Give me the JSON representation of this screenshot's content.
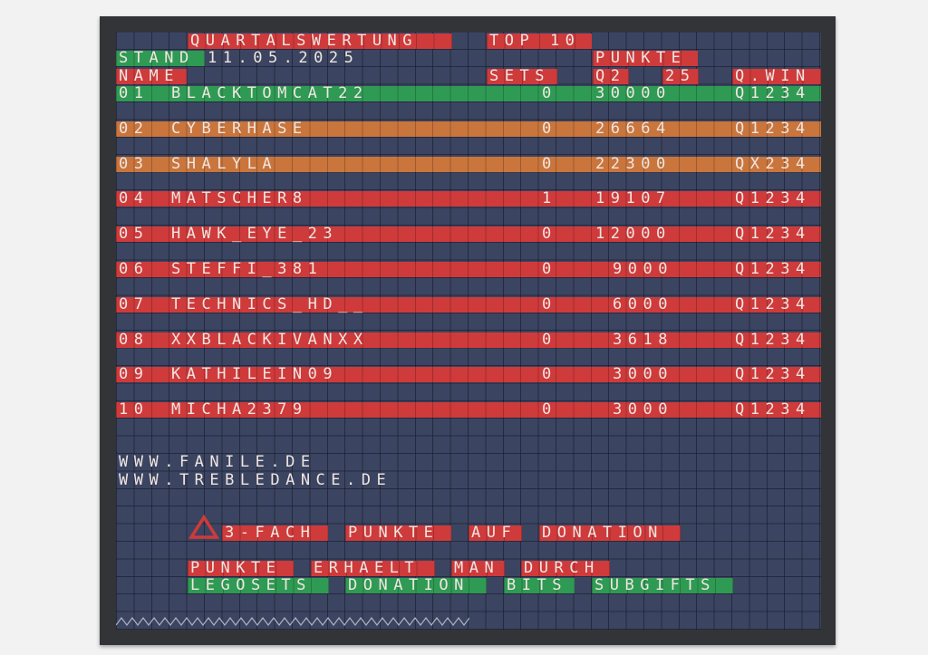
{
  "header": {
    "title": "QUARTALSWERTUNG",
    "top": "TOP 10",
    "stand_label": "STAND",
    "stand_date": "11.05.2025",
    "punkte": "PUNKTE"
  },
  "columns": {
    "name": "NAME",
    "sets": "SETS",
    "q2": "Q2",
    "year": "25",
    "qwin": "Q.WIN"
  },
  "rows": [
    {
      "rank": "01",
      "name": "BLACKTOMCAT22",
      "sets": "0",
      "points": "30000",
      "qwin": "Q1234",
      "color": "green"
    },
    {
      "rank": "02",
      "name": "CYBERHASE",
      "sets": "0",
      "points": "26664",
      "qwin": "Q1234",
      "color": "orange"
    },
    {
      "rank": "03",
      "name": "SHALYLA",
      "sets": "0",
      "points": "22300",
      "qwin": "QX234",
      "color": "orange"
    },
    {
      "rank": "04",
      "name": "MATSCHER8",
      "sets": "1",
      "points": "19107",
      "qwin": "Q1234",
      "color": "red"
    },
    {
      "rank": "05",
      "name": "HAWK_EYE_23",
      "sets": "0",
      "points": "12000",
      "qwin": "Q1234",
      "color": "red"
    },
    {
      "rank": "06",
      "name": "STEFFI_381",
      "sets": "0",
      "points": "9000",
      "qwin": "Q1234",
      "color": "red"
    },
    {
      "rank": "07",
      "name": "TECHNICS_HD__",
      "sets": "0",
      "points": "6000",
      "qwin": "Q1234",
      "color": "red"
    },
    {
      "rank": "08",
      "name": "XXBLACKIVANXX",
      "sets": "0",
      "points": "3618",
      "qwin": "Q1234",
      "color": "red"
    },
    {
      "rank": "09",
      "name": "KATHILEIN09",
      "sets": "0",
      "points": "3000",
      "qwin": "Q1234",
      "color": "red"
    },
    {
      "rank": "10",
      "name": "MICHA2379",
      "sets": "0",
      "points": "3000",
      "qwin": "Q1234",
      "color": "red"
    }
  ],
  "links": [
    "WWW.FANILE.DE",
    "WWW.TREBLEDANCE.DE"
  ],
  "notice": {
    "icon": "warning-triangle-icon",
    "words": [
      "3-FACH",
      "PUNKTE",
      "AUF",
      "DONATION"
    ]
  },
  "earn": {
    "words": [
      "PUNKTE",
      "ERHAELT",
      "MAN",
      "DURCH"
    ],
    "sources": [
      "LEGOSETS",
      "DONATION",
      "BITS",
      "SUBGIFTS"
    ]
  },
  "colors": {
    "board": "#3b4460",
    "frame": "#333437",
    "green": "#2f9a53",
    "orange": "#c9753c",
    "red": "#cf3a3b",
    "text": "#efe6e2"
  }
}
